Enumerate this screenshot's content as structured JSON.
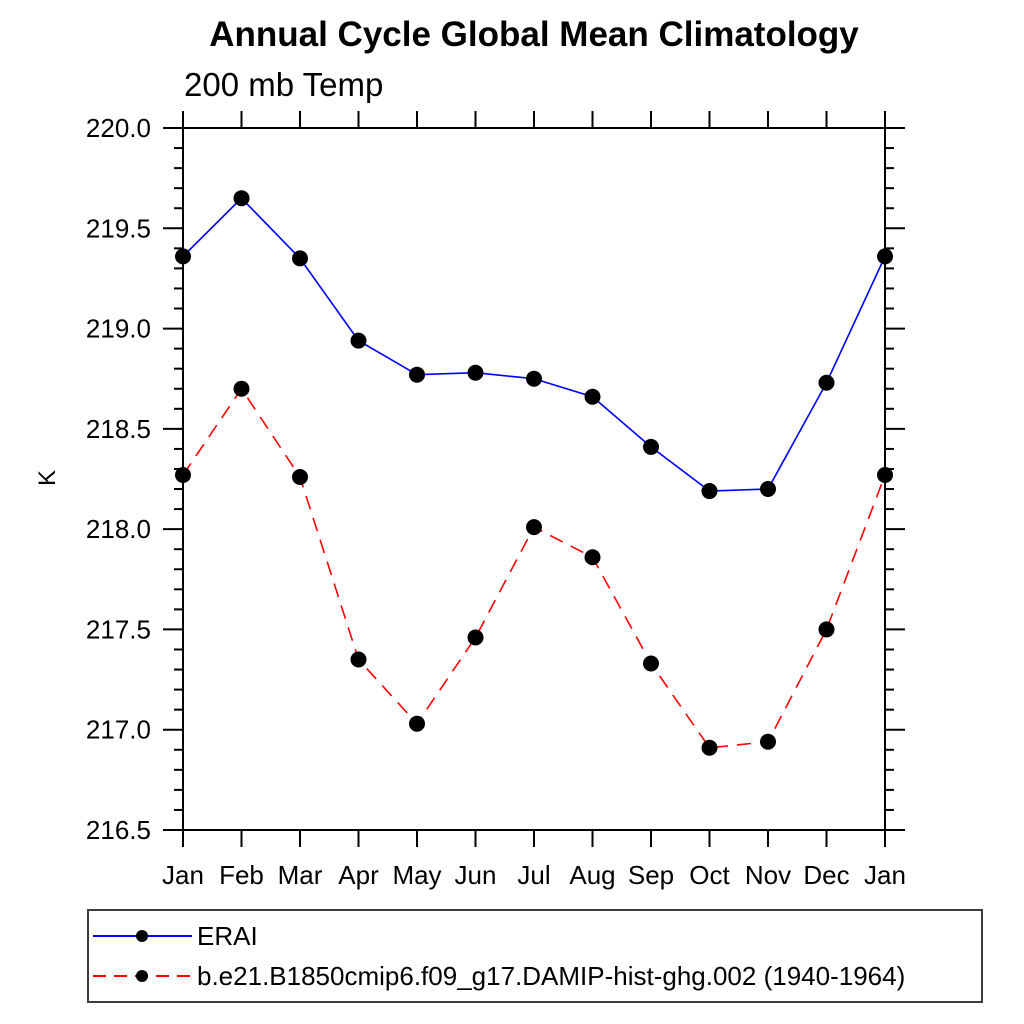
{
  "chart_data": {
    "type": "line",
    "title": "Annual Cycle Global Mean Climatology",
    "subtitle": "200 mb Temp",
    "ylabel": "K",
    "xlabel": "",
    "categories": [
      "Jan",
      "Feb",
      "Mar",
      "Apr",
      "May",
      "Jun",
      "Jul",
      "Aug",
      "Sep",
      "Oct",
      "Nov",
      "Dec",
      "Jan"
    ],
    "series": [
      {
        "name": "ERAI",
        "color": "#0000ff",
        "line_style": "solid",
        "marker": "filled-circle",
        "marker_color": "#000000",
        "values": [
          219.36,
          219.65,
          219.35,
          218.94,
          218.77,
          218.78,
          218.75,
          218.66,
          218.41,
          218.19,
          218.2,
          218.73,
          219.36
        ]
      },
      {
        "name": "b.e21.B1850cmip6.f09_g17.DAMIP-hist-ghg.002 (1940-1964)",
        "color": "#ff0000",
        "line_style": "dashed",
        "marker": "filled-circle",
        "marker_color": "#000000",
        "values": [
          218.27,
          218.7,
          218.26,
          217.35,
          217.03,
          217.46,
          218.01,
          217.86,
          217.33,
          216.91,
          216.94,
          217.5,
          218.27
        ]
      }
    ],
    "ylim": [
      216.5,
      220.0
    ],
    "ytick_major_interval": 0.5,
    "ytick_minor_interval": 0.1,
    "ytick_labels": [
      "216.5",
      "217.0",
      "217.5",
      "218.0",
      "218.5",
      "219.0",
      "219.5",
      "220.0"
    ],
    "axis_color": "#000000",
    "grid": false,
    "legend_position": "bottom-left"
  }
}
